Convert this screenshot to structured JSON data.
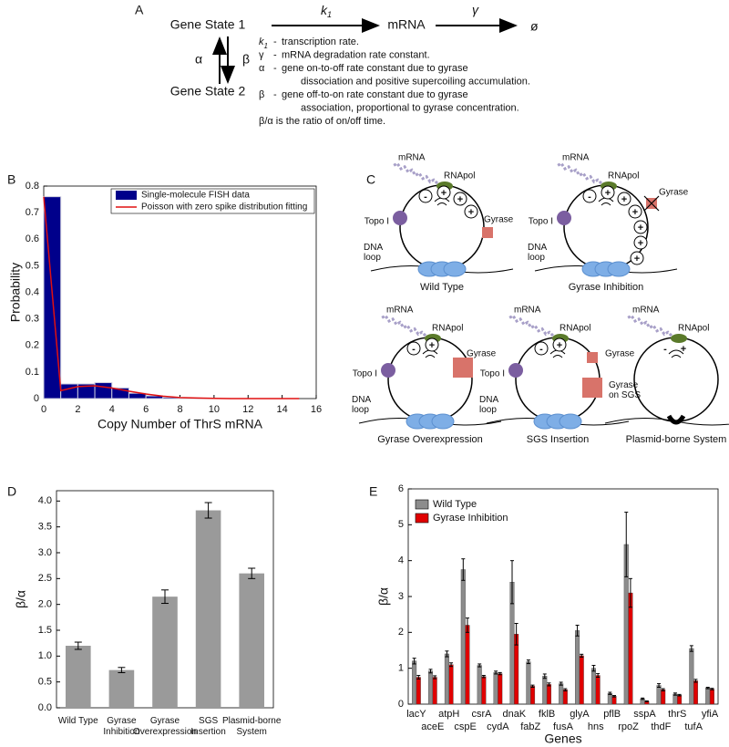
{
  "panel_a": {
    "panel": "A",
    "state1": "Gene State 1",
    "state2": "Gene State 2",
    "mrna": "mRNA",
    "k1": {
      "base": "k",
      "sub": "1"
    },
    "gamma": "γ",
    "empty": "ø",
    "alpha": "α",
    "beta": "β",
    "definitions": [
      {
        "symbol": "k",
        "sub": "1",
        "dash": "-",
        "lines": [
          "transcription rate."
        ]
      },
      {
        "symbol": "γ",
        "dash": "-",
        "lines": [
          "mRNA degradation rate constant."
        ]
      },
      {
        "symbol": "α",
        "dash": "-",
        "lines": [
          "gene on-to-off rate constant due to gyrase",
          "dissociation and positive supercoiling accumulation."
        ]
      },
      {
        "symbol": "β",
        "dash": "-",
        "lines": [
          "gene off-to-on rate constant due to gyrase",
          "association, proportional to gyrase concentration."
        ]
      }
    ],
    "note": "β/α is the ratio of on/off time."
  },
  "panel_c": {
    "panel": "C",
    "minus": "-",
    "plus": "+",
    "diagrams": [
      {
        "caption": "Wild Type",
        "mrna": "mRNA",
        "rnapol": "RNApol",
        "topo": "Topo I",
        "gyrase": "Gyrase",
        "dna_loop": [
          "DNA",
          "loop"
        ]
      },
      {
        "caption": "Gyrase Inhibition",
        "mrna": "mRNA",
        "rnapol": "RNApol",
        "topo": "Topo I",
        "gyrase": "Gyrase",
        "dna_loop": [
          "DNA",
          "loop"
        ]
      },
      {
        "caption": "Gyrase Overexpression",
        "mrna": "mRNA",
        "rnapol": "RNApol",
        "topo": "Topo I",
        "gyrase": "Gyrase",
        "dna_loop": [
          "DNA",
          "loop"
        ]
      },
      {
        "caption": "SGS Insertion",
        "mrna": "mRNA",
        "rnapol": "RNApol",
        "topo": "Topo I",
        "gyrase": "Gyrase",
        "gyrase_sgs": [
          "Gyrase",
          "on SGS"
        ],
        "dna_loop": [
          "DNA",
          "loop"
        ]
      },
      {
        "caption": "Plasmid-borne System",
        "mrna": "mRNA",
        "rnapol": "RNApol"
      }
    ]
  },
  "chart_data": [
    {
      "type": "histogram",
      "panel": "B",
      "x_label": "Copy Number of ThrS mRNA",
      "y_label": "Probability",
      "bins": [
        0,
        1,
        2,
        3,
        4,
        5,
        6,
        7,
        8,
        9,
        10
      ],
      "series": [
        {
          "name": "Single-molecule FISH data",
          "color": "#00008b",
          "values": [
            0.76,
            0.055,
            0.055,
            0.06,
            0.04,
            0.02,
            0.01,
            0.005,
            0.002,
            0.001
          ]
        },
        {
          "name": "Poisson with zero spike distribution fitting",
          "color": "#e01010",
          "x": [
            0,
            1,
            2,
            3,
            4,
            5,
            6,
            7,
            8,
            9,
            10,
            11,
            12,
            13,
            14,
            15
          ],
          "values": [
            0.76,
            0.03,
            0.045,
            0.048,
            0.04,
            0.028,
            0.017,
            0.009,
            0.004,
            0.002,
            0.001,
            0,
            0,
            0,
            0,
            0
          ]
        }
      ],
      "xlim": [
        0,
        16
      ],
      "xticks": [
        0,
        2,
        4,
        6,
        8,
        10,
        12,
        14,
        16
      ],
      "ylim": [
        0,
        0.8
      ],
      "yticks": [
        0,
        0.1,
        0.2,
        0.3,
        0.4,
        0.5,
        0.6,
        0.7,
        0.8
      ],
      "legend": "top-right"
    },
    {
      "type": "bar",
      "panel": "D",
      "y_label": "β/α",
      "categories": [
        [
          "Wild Type"
        ],
        [
          "Gyrase",
          "Inhibition"
        ],
        [
          "Gyrase",
          "Overexpression"
        ],
        [
          "SGS",
          "Insertion"
        ],
        [
          "Plasmid-borne",
          "System"
        ]
      ],
      "values": [
        1.2,
        0.73,
        2.15,
        3.82,
        2.6
      ],
      "errors": [
        0.07,
        0.05,
        0.13,
        0.15,
        0.1
      ],
      "color": "#9a9a9a",
      "ylim": [
        0,
        4.2
      ],
      "yticks": [
        {
          "value": 0,
          "label": "0.0"
        },
        0.5,
        {
          "value": 1,
          "label": "1.0"
        },
        1.5,
        {
          "value": 2,
          "label": "2.0"
        },
        2.5,
        {
          "value": 3,
          "label": "3.0"
        },
        3.5,
        {
          "value": 4,
          "label": "4.0"
        }
      ]
    },
    {
      "type": "bar",
      "panel": "E",
      "x_label": "Genes",
      "y_label": "β/α",
      "categories": [
        "lacY",
        "aceE",
        "atpH",
        "cspE",
        "csrA",
        "cydA",
        "dnaK",
        "fabZ",
        "fklB",
        "fusA",
        "glyA",
        "hns",
        "pflB",
        "rpoZ",
        "sspA",
        "thdF",
        "thrS",
        "tufA",
        "yfiA"
      ],
      "series": [
        {
          "name": "Wild Type",
          "color": "#8c8c8c",
          "values": [
            1.2,
            0.92,
            1.4,
            3.75,
            1.08,
            0.88,
            3.4,
            1.18,
            0.78,
            0.57,
            2.05,
            1.0,
            0.3,
            4.45,
            0.15,
            0.52,
            0.28,
            1.55,
            0.45
          ],
          "errors": [
            0.08,
            0.05,
            0.08,
            0.3,
            0.04,
            0.04,
            0.6,
            0.05,
            0.06,
            0.04,
            0.15,
            0.08,
            0.03,
            0.9,
            0.02,
            0.05,
            0.03,
            0.08,
            0.02
          ]
        },
        {
          "name": "Gyrase Inhibition",
          "color": "#e00000",
          "values": [
            0.75,
            0.75,
            1.1,
            2.2,
            0.77,
            0.85,
            1.95,
            0.5,
            0.55,
            0.4,
            1.35,
            0.8,
            0.22,
            3.1,
            0.08,
            0.4,
            0.25,
            0.65,
            0.42
          ],
          "errors": [
            0.05,
            0.04,
            0.05,
            0.2,
            0.03,
            0.03,
            0.3,
            0.03,
            0.04,
            0.03,
            0.04,
            0.05,
            0.02,
            0.4,
            0.01,
            0.03,
            0.02,
            0.04,
            0.02
          ]
        }
      ],
      "ylim": [
        0,
        6
      ],
      "yticks": [
        0,
        1,
        2,
        3,
        4,
        5,
        6
      ],
      "legend": "top-left"
    }
  ]
}
